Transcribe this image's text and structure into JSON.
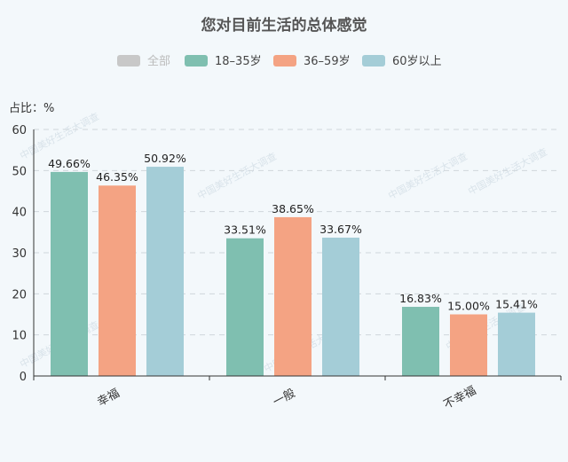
{
  "chart_data": {
    "type": "bar",
    "title": "您对目前生活的总体感觉",
    "ylabel": "占比：%",
    "ylim": [
      0,
      60
    ],
    "yticks": [
      0,
      10,
      20,
      30,
      40,
      50,
      60
    ],
    "grid": true,
    "legend_position": "top",
    "categories": [
      "幸福",
      "一般",
      "不幸福"
    ],
    "legend": [
      {
        "name": "全部",
        "color": "#c8c8c8",
        "disabled": true
      },
      {
        "name": "18–35岁",
        "color": "#7fbfb0",
        "disabled": false
      },
      {
        "name": "36–59岁",
        "color": "#f4a383",
        "disabled": false
      },
      {
        "name": "60岁以上",
        "color": "#a4cdd7",
        "disabled": false
      }
    ],
    "series": [
      {
        "name": "18–35岁",
        "color": "#7fbfb0",
        "values": [
          49.66,
          33.51,
          16.83
        ],
        "labels": [
          "49.66%",
          "33.51%",
          "16.83%"
        ]
      },
      {
        "name": "36–59岁",
        "color": "#f4a383",
        "values": [
          46.35,
          38.65,
          15.0
        ],
        "labels": [
          "46.35%",
          "38.65%",
          "15.00%"
        ]
      },
      {
        "name": "60岁以上",
        "color": "#a4cdd7",
        "values": [
          50.92,
          33.67,
          15.41
        ],
        "labels": [
          "50.92%",
          "33.67%",
          "15.41%"
        ]
      }
    ]
  },
  "watermark": "中国美好生活大调查"
}
